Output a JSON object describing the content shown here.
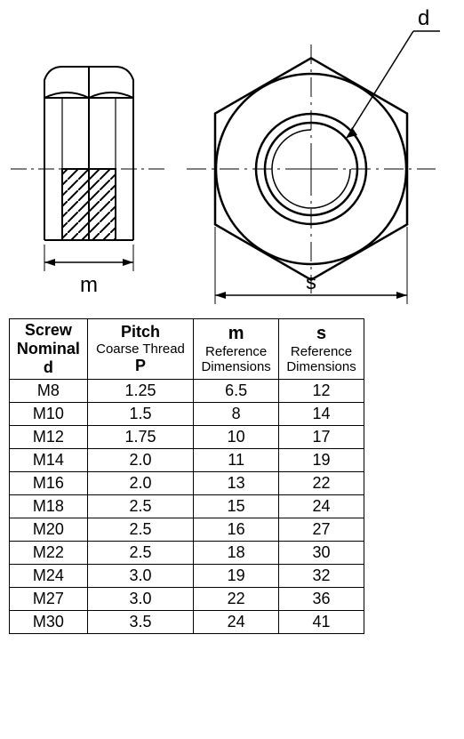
{
  "diagram": {
    "label_d": "d",
    "label_m": "m",
    "label_s": "s",
    "stroke": "#000000",
    "stroke_width": 2,
    "thin_stroke": 1,
    "hatch_spacing": 10
  },
  "table": {
    "columns": [
      {
        "top": "Screw",
        "mid": "Nominal",
        "bot": "d"
      },
      {
        "top": "Pitch",
        "mid": "Coarse Thread",
        "bot": "P"
      },
      {
        "top": "m",
        "mid": "Reference",
        "bot": "Dimensions"
      },
      {
        "top": "s",
        "mid": "Reference",
        "bot": "Dimensions"
      }
    ],
    "rows": [
      [
        "M8",
        "1.25",
        "6.5",
        "12"
      ],
      [
        "M10",
        "1.5",
        "8",
        "14"
      ],
      [
        "M12",
        "1.75",
        "10",
        "17"
      ],
      [
        "M14",
        "2.0",
        "11",
        "19"
      ],
      [
        "M16",
        "2.0",
        "13",
        "22"
      ],
      [
        "M18",
        "2.5",
        "15",
        "24"
      ],
      [
        "M20",
        "2.5",
        "16",
        "27"
      ],
      [
        "M22",
        "2.5",
        "18",
        "30"
      ],
      [
        "M24",
        "3.0",
        "19",
        "32"
      ],
      [
        "M27",
        "3.0",
        "22",
        "36"
      ],
      [
        "M30",
        "3.5",
        "24",
        "41"
      ]
    ]
  }
}
